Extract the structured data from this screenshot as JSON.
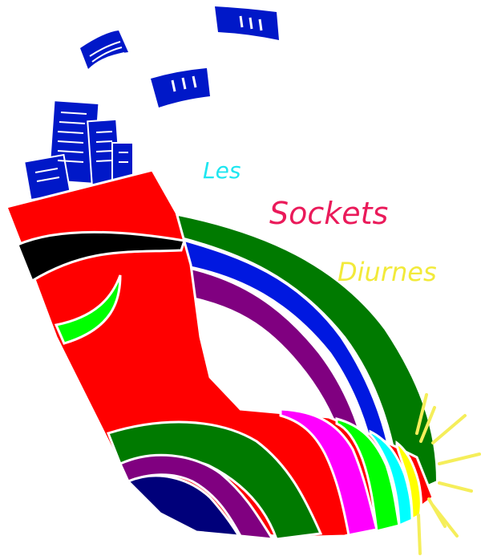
{
  "logo": {
    "words": [
      "Les",
      "Sockets",
      "Diurnes"
    ],
    "colors": {
      "les": "#1ee6f0",
      "sockets": "#ea1a5a",
      "diurnes": "#f2ea3a",
      "sock": "#ff0000",
      "papers": "#0018c8",
      "rainbow_green": "#007a00",
      "rainbow_blue": "#0018e0",
      "rainbow_purple": "#800080",
      "navy": "#00007a",
      "magenta": "#ff00ff",
      "lime": "#00ff00",
      "cyan": "#00ffff",
      "yellow": "#ffff00",
      "glow": "#f5ee5a"
    }
  }
}
